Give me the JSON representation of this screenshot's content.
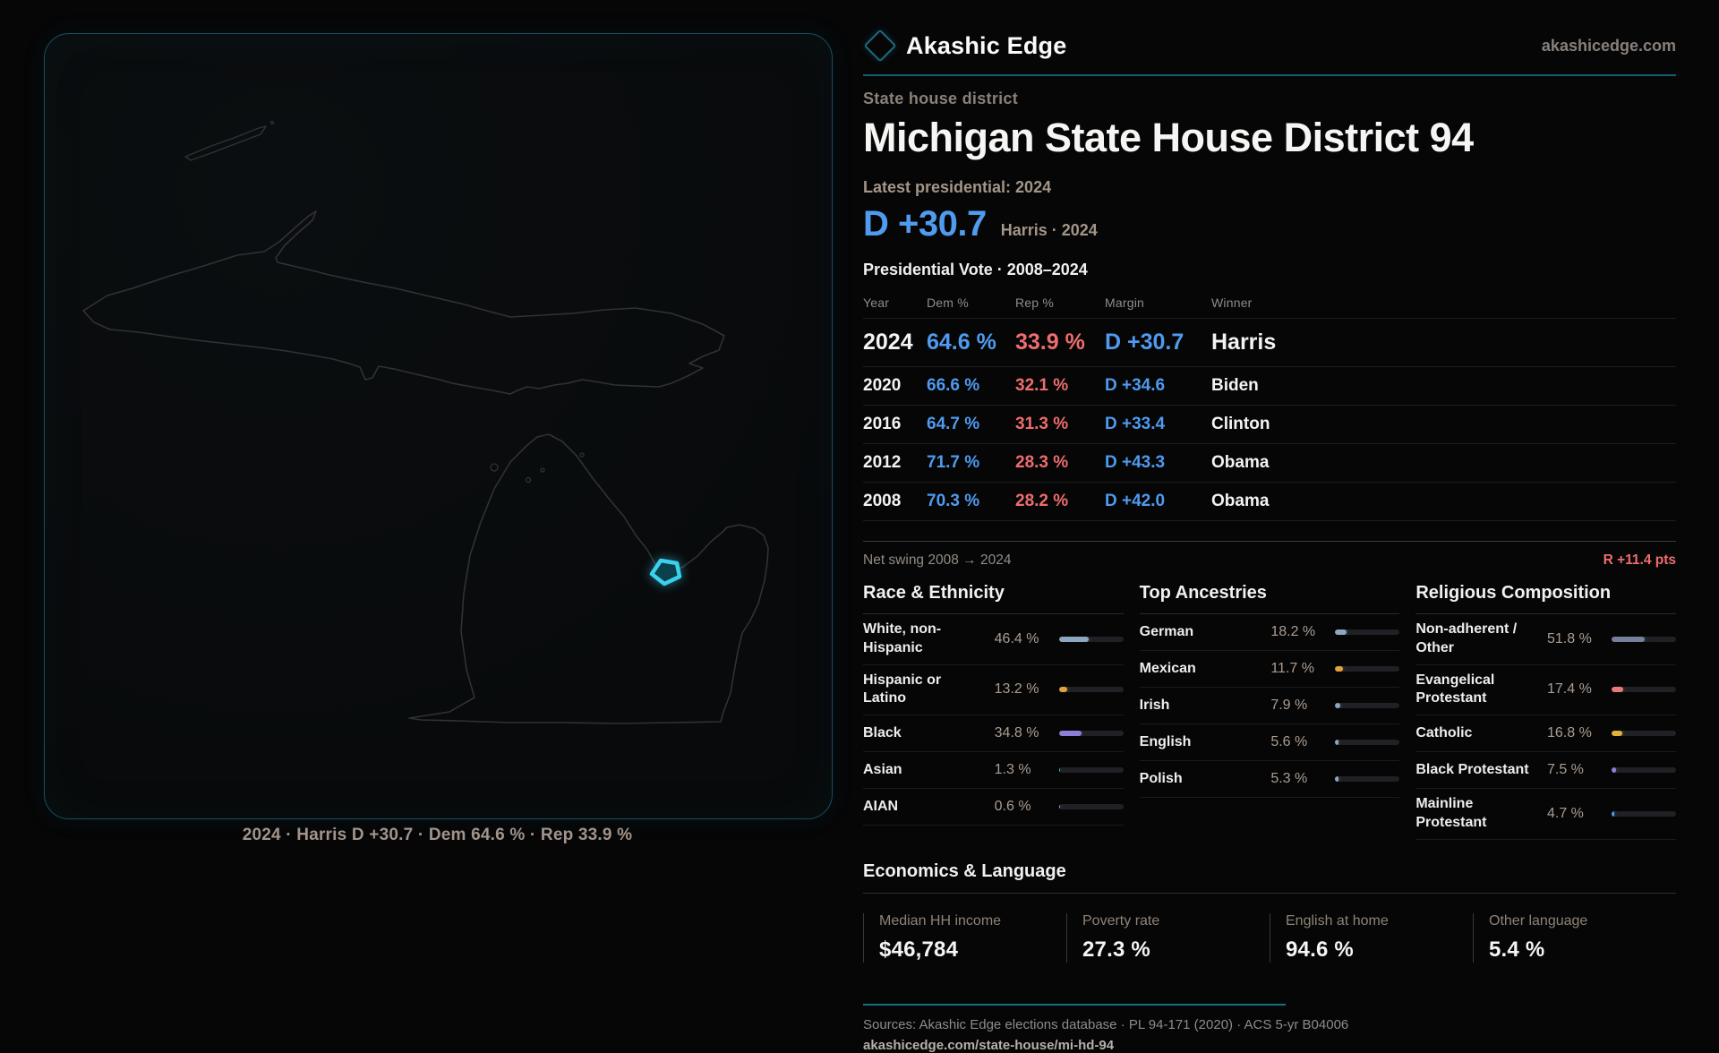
{
  "brand": {
    "name": "Akashic Edge",
    "site_link": "akashicedge.com"
  },
  "page": {
    "kicker": "State house district",
    "title": "Michigan State House District 94",
    "latest_label": "Latest presidential: 2024",
    "headline_margin": "D +30.7",
    "headline_context": "Harris · 2024"
  },
  "map": {
    "caption": "2024 · Harris D +30.7 · Dem 64.6 % · Rep 33.9 %",
    "district_accent": "#3ad1ee"
  },
  "colors": {
    "dem_blue": "#4f9bef",
    "rep_red": "#ee6d6d",
    "teal_rule": "#155e6e",
    "cyan_district": "#3ad1ee"
  },
  "table": {
    "title": "Presidential Vote · 2008–2024",
    "columns": [
      "Year",
      "Dem %",
      "Rep %",
      "Margin",
      "Winner"
    ],
    "rows": [
      {
        "year": "2024",
        "dem": "64.6 %",
        "rep": "33.9 %",
        "margin": "D +30.7",
        "winner": "Harris"
      },
      {
        "year": "2020",
        "dem": "66.6 %",
        "rep": "32.1 %",
        "margin": "D +34.6",
        "winner": "Biden"
      },
      {
        "year": "2016",
        "dem": "64.7 %",
        "rep": "31.3 %",
        "margin": "D +33.4",
        "winner": "Clinton"
      },
      {
        "year": "2012",
        "dem": "71.7 %",
        "rep": "28.3 %",
        "margin": "D +43.3",
        "winner": "Obama"
      },
      {
        "year": "2008",
        "dem": "70.3 %",
        "rep": "28.2 %",
        "margin": "D +42.0",
        "winner": "Obama"
      }
    ],
    "net_swing_label": "Net swing 2008 → 2024",
    "net_swing_value": "R +11.4 pts"
  },
  "demographics": [
    {
      "title": "Race & Ethnicity",
      "rows": [
        {
          "label": "White, non-Hispanic",
          "value": "46.4 %",
          "pct": 46.4,
          "color": "#8ea6c0"
        },
        {
          "label": "Hispanic or Latino",
          "value": "13.2 %",
          "pct": 13.2,
          "color": "#e2a23a"
        },
        {
          "label": "Black",
          "value": "34.8 %",
          "pct": 34.8,
          "color": "#8f7ed8"
        },
        {
          "label": "Asian",
          "value": "1.3 %",
          "pct": 1.3,
          "color": "#38d5a2"
        },
        {
          "label": "AIAN",
          "value": "0.6 %",
          "pct": 0.6,
          "color": "#8ea6c0"
        }
      ]
    },
    {
      "title": "Top Ancestries",
      "rows": [
        {
          "label": "German",
          "value": "18.2 %",
          "pct": 18.2,
          "color": "#8ea6c0"
        },
        {
          "label": "Mexican",
          "value": "11.7 %",
          "pct": 11.7,
          "color": "#e2a23a"
        },
        {
          "label": "Irish",
          "value": "7.9 %",
          "pct": 7.9,
          "color": "#8ea6c0"
        },
        {
          "label": "English",
          "value": "5.6 %",
          "pct": 5.6,
          "color": "#8ea6c0"
        },
        {
          "label": "Polish",
          "value": "5.3 %",
          "pct": 5.3,
          "color": "#8ea6c0"
        }
      ]
    },
    {
      "title": "Religious Composition",
      "rows": [
        {
          "label": "Non-adherent / Other",
          "value": "51.8 %",
          "pct": 51.8,
          "color": "#75819b"
        },
        {
          "label": "Evangelical Protestant",
          "value": "17.4 %",
          "pct": 17.4,
          "color": "#e87a7a"
        },
        {
          "label": "Catholic",
          "value": "16.8 %",
          "pct": 16.8,
          "color": "#e2b13a"
        },
        {
          "label": "Black Protestant",
          "value": "7.5 %",
          "pct": 7.5,
          "color": "#8f7ed8"
        },
        {
          "label": "Mainline Protestant",
          "value": "4.7 %",
          "pct": 4.7,
          "color": "#4f9bef"
        }
      ]
    }
  ],
  "economics": {
    "title": "Economics & Language",
    "stats": [
      {
        "label": "Median HH income",
        "value": "$46,784"
      },
      {
        "label": "Poverty rate",
        "value": "27.3 %"
      },
      {
        "label": "English at home",
        "value": "94.6 %"
      },
      {
        "label": "Other language",
        "value": "5.4 %"
      }
    ]
  },
  "footer": {
    "sources": "Sources: Akashic Edge elections database · PL 94-171 (2020) · ACS 5-yr B04006",
    "permalink": "akashicedge.com/state-house/mi-hd-94"
  },
  "chart_data": [
    {
      "type": "table",
      "title": "Presidential Vote · 2008–2024",
      "columns": [
        "Year",
        "Dem %",
        "Rep %",
        "Margin",
        "Winner"
      ],
      "rows": [
        [
          "2024",
          64.6,
          33.9,
          "D +30.7",
          "Harris"
        ],
        [
          "2020",
          66.6,
          32.1,
          "D +34.6",
          "Biden"
        ],
        [
          "2016",
          64.7,
          31.3,
          "D +33.4",
          "Clinton"
        ],
        [
          "2012",
          71.7,
          28.3,
          "D +43.3",
          "Obama"
        ],
        [
          "2008",
          70.3,
          28.2,
          "D +42.0",
          "Obama"
        ]
      ],
      "annotations": [
        "Net swing 2008 → 2024: R +11.4 pts",
        "Latest presidential 2024: D +30.7 (Harris)"
      ]
    },
    {
      "type": "bar",
      "title": "Race & Ethnicity",
      "unit": "%",
      "xlim": [
        0,
        100
      ],
      "categories": [
        "White, non-Hispanic",
        "Hispanic or Latino",
        "Black",
        "Asian",
        "AIAN"
      ],
      "values": [
        46.4,
        13.2,
        34.8,
        1.3,
        0.6
      ]
    },
    {
      "type": "bar",
      "title": "Top Ancestries",
      "unit": "%",
      "xlim": [
        0,
        100
      ],
      "categories": [
        "German",
        "Mexican",
        "Irish",
        "English",
        "Polish"
      ],
      "values": [
        18.2,
        11.7,
        7.9,
        5.6,
        5.3
      ]
    },
    {
      "type": "bar",
      "title": "Religious Composition",
      "unit": "%",
      "xlim": [
        0,
        100
      ],
      "categories": [
        "Non-adherent / Other",
        "Evangelical Protestant",
        "Catholic",
        "Black Protestant",
        "Mainline Protestant"
      ],
      "values": [
        51.8,
        17.4,
        16.8,
        7.5,
        4.7
      ]
    },
    {
      "type": "table",
      "title": "Economics & Language",
      "rows": [
        [
          "Median HH income",
          "$46,784"
        ],
        [
          "Poverty rate",
          "27.3 %"
        ],
        [
          "English at home",
          "94.6 %"
        ],
        [
          "Other language",
          "5.4 %"
        ]
      ]
    }
  ]
}
